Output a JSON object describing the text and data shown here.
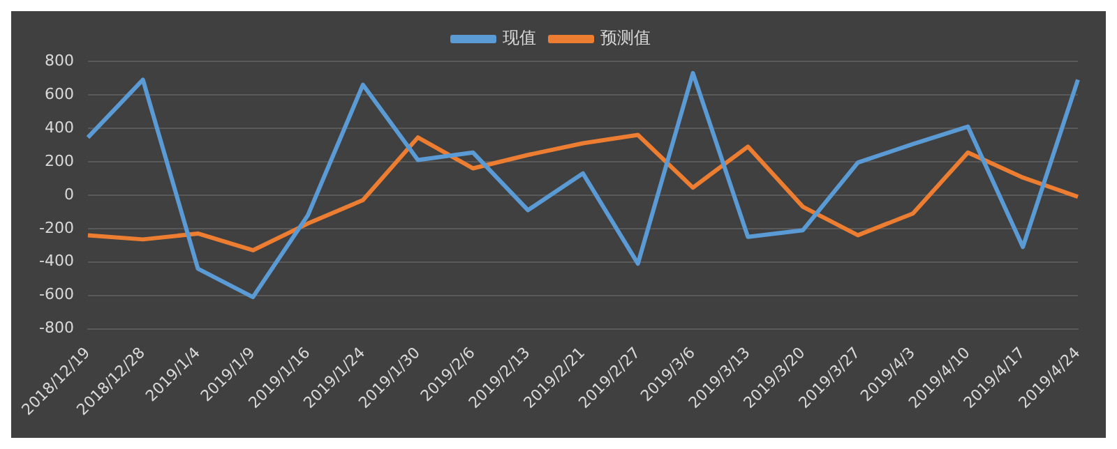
{
  "chart_data": {
    "type": "line",
    "categories": [
      "2018/12/19",
      "2018/12/28",
      "2019/1/4",
      "2019/1/9",
      "2019/1/16",
      "2019/1/24",
      "2019/1/30",
      "2019/2/6",
      "2019/2/13",
      "2019/2/21",
      "2019/2/27",
      "2019/3/6",
      "2019/3/13",
      "2019/3/20",
      "2019/3/27",
      "2019/4/3",
      "2019/4/10",
      "2019/4/17",
      "2019/4/24"
    ],
    "series": [
      {
        "name": "现值",
        "color": "#5b9bd5",
        "values": [
          345,
          690,
          -440,
          -610,
          -120,
          660,
          210,
          255,
          -90,
          130,
          -410,
          730,
          -250,
          -210,
          195,
          305,
          410,
          -310,
          690
        ]
      },
      {
        "name": "预测值",
        "color": "#ed7d31",
        "values": [
          -240,
          -265,
          -230,
          -330,
          -170,
          -30,
          345,
          160,
          240,
          310,
          360,
          45,
          290,
          -70,
          -240,
          -110,
          255,
          105,
          -10
        ]
      }
    ],
    "ylim": [
      -800,
      800
    ],
    "yticks": [
      -800,
      -600,
      -400,
      -200,
      0,
      200,
      400,
      600,
      800
    ],
    "grid": "y",
    "legend": "top",
    "marker": "none",
    "line_style": "solid"
  }
}
